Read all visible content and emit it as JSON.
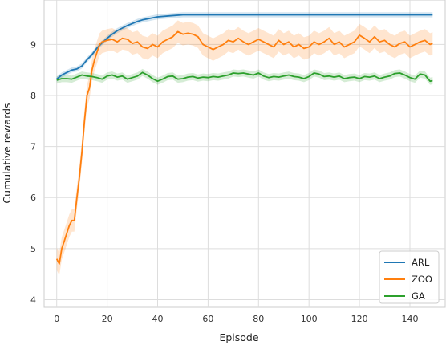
{
  "chart_data": {
    "type": "line",
    "title": "",
    "xlabel": "Episode",
    "ylabel": "Cumulative rewards",
    "xlim": [
      -5,
      154
    ],
    "ylim": [
      3.85,
      9.87
    ],
    "xticks": [
      0,
      20,
      40,
      60,
      80,
      100,
      120,
      140
    ],
    "yticks": [
      4,
      5,
      6,
      7,
      8,
      9
    ],
    "grid": true,
    "legend_position": "lower-right",
    "colors": {
      "ARL": "#1f77b4",
      "ZOO": "#ff7f0e",
      "GA": "#2ca02c"
    },
    "series": [
      {
        "name": "ARL",
        "points": [
          [
            0,
            8.32
          ],
          [
            2,
            8.4
          ],
          [
            4,
            8.45
          ],
          [
            6,
            8.5
          ],
          [
            8,
            8.52
          ],
          [
            10,
            8.58
          ],
          [
            12,
            8.7
          ],
          [
            14,
            8.8
          ],
          [
            16,
            8.93
          ],
          [
            18,
            9.03
          ],
          [
            20,
            9.12
          ],
          [
            22,
            9.2
          ],
          [
            24,
            9.27
          ],
          [
            26,
            9.32
          ],
          [
            28,
            9.37
          ],
          [
            30,
            9.41
          ],
          [
            32,
            9.45
          ],
          [
            34,
            9.48
          ],
          [
            36,
            9.5
          ],
          [
            38,
            9.52
          ],
          [
            40,
            9.54
          ],
          [
            45,
            9.56
          ],
          [
            50,
            9.58
          ],
          [
            60,
            9.58
          ],
          [
            80,
            9.58
          ],
          [
            100,
            9.58
          ],
          [
            120,
            9.58
          ],
          [
            140,
            9.58
          ],
          [
            149,
            9.58
          ]
        ],
        "band": 0.05
      },
      {
        "name": "ZOO",
        "points": [
          [
            0,
            4.8
          ],
          [
            1,
            4.7
          ],
          [
            2,
            5.0
          ],
          [
            3,
            5.15
          ],
          [
            4,
            5.3
          ],
          [
            5,
            5.45
          ],
          [
            6,
            5.55
          ],
          [
            7,
            5.55
          ],
          [
            8,
            6.0
          ],
          [
            9,
            6.4
          ],
          [
            10,
            6.9
          ],
          [
            11,
            7.5
          ],
          [
            12,
            8.0
          ],
          [
            13,
            8.15
          ],
          [
            14,
            8.5
          ],
          [
            15,
            8.7
          ],
          [
            16,
            8.85
          ],
          [
            17,
            9.0
          ],
          [
            18,
            9.05
          ],
          [
            20,
            9.08
          ],
          [
            22,
            9.1
          ],
          [
            24,
            9.05
          ],
          [
            26,
            9.12
          ],
          [
            28,
            9.1
          ],
          [
            30,
            9.02
          ],
          [
            32,
            9.05
          ],
          [
            34,
            8.95
          ],
          [
            36,
            8.92
          ],
          [
            38,
            9.0
          ],
          [
            40,
            8.95
          ],
          [
            42,
            9.05
          ],
          [
            44,
            9.1
          ],
          [
            46,
            9.15
          ],
          [
            48,
            9.25
          ],
          [
            50,
            9.2
          ],
          [
            52,
            9.22
          ],
          [
            54,
            9.2
          ],
          [
            56,
            9.15
          ],
          [
            58,
            9.0
          ],
          [
            60,
            8.95
          ],
          [
            62,
            8.9
          ],
          [
            64,
            8.95
          ],
          [
            66,
            9.0
          ],
          [
            68,
            9.08
          ],
          [
            70,
            9.05
          ],
          [
            72,
            9.12
          ],
          [
            74,
            9.05
          ],
          [
            76,
            9.0
          ],
          [
            78,
            9.05
          ],
          [
            80,
            9.1
          ],
          [
            82,
            9.05
          ],
          [
            84,
            9.0
          ],
          [
            86,
            8.95
          ],
          [
            88,
            9.08
          ],
          [
            90,
            9.0
          ],
          [
            92,
            9.05
          ],
          [
            94,
            8.95
          ],
          [
            96,
            9.0
          ],
          [
            98,
            8.92
          ],
          [
            100,
            8.95
          ],
          [
            102,
            9.05
          ],
          [
            104,
            9.0
          ],
          [
            106,
            9.05
          ],
          [
            108,
            9.12
          ],
          [
            110,
            9.0
          ],
          [
            112,
            9.05
          ],
          [
            114,
            8.95
          ],
          [
            116,
            9.0
          ],
          [
            118,
            9.05
          ],
          [
            120,
            9.18
          ],
          [
            122,
            9.12
          ],
          [
            124,
            9.05
          ],
          [
            126,
            9.15
          ],
          [
            128,
            9.05
          ],
          [
            130,
            9.08
          ],
          [
            132,
            9.0
          ],
          [
            134,
            8.95
          ],
          [
            136,
            9.02
          ],
          [
            138,
            9.05
          ],
          [
            140,
            8.95
          ],
          [
            142,
            9.0
          ],
          [
            144,
            9.05
          ],
          [
            146,
            9.08
          ],
          [
            148,
            9.0
          ],
          [
            149,
            9.02
          ]
        ],
        "band": 0.22
      },
      {
        "name": "GA",
        "points": [
          [
            0,
            8.3
          ],
          [
            2,
            8.33
          ],
          [
            4,
            8.33
          ],
          [
            6,
            8.32
          ],
          [
            8,
            8.36
          ],
          [
            10,
            8.4
          ],
          [
            12,
            8.38
          ],
          [
            14,
            8.37
          ],
          [
            16,
            8.35
          ],
          [
            18,
            8.32
          ],
          [
            20,
            8.38
          ],
          [
            22,
            8.4
          ],
          [
            24,
            8.36
          ],
          [
            26,
            8.38
          ],
          [
            28,
            8.32
          ],
          [
            30,
            8.35
          ],
          [
            32,
            8.38
          ],
          [
            34,
            8.45
          ],
          [
            36,
            8.4
          ],
          [
            38,
            8.33
          ],
          [
            40,
            8.28
          ],
          [
            42,
            8.32
          ],
          [
            44,
            8.37
          ],
          [
            46,
            8.38
          ],
          [
            48,
            8.32
          ],
          [
            50,
            8.33
          ],
          [
            52,
            8.36
          ],
          [
            54,
            8.37
          ],
          [
            56,
            8.34
          ],
          [
            58,
            8.36
          ],
          [
            60,
            8.35
          ],
          [
            62,
            8.37
          ],
          [
            64,
            8.36
          ],
          [
            66,
            8.38
          ],
          [
            68,
            8.4
          ],
          [
            70,
            8.44
          ],
          [
            72,
            8.43
          ],
          [
            74,
            8.44
          ],
          [
            76,
            8.42
          ],
          [
            78,
            8.4
          ],
          [
            80,
            8.44
          ],
          [
            82,
            8.38
          ],
          [
            84,
            8.35
          ],
          [
            86,
            8.37
          ],
          [
            88,
            8.36
          ],
          [
            90,
            8.38
          ],
          [
            92,
            8.4
          ],
          [
            94,
            8.37
          ],
          [
            96,
            8.36
          ],
          [
            98,
            8.33
          ],
          [
            100,
            8.37
          ],
          [
            102,
            8.44
          ],
          [
            104,
            8.42
          ],
          [
            106,
            8.37
          ],
          [
            108,
            8.38
          ],
          [
            110,
            8.36
          ],
          [
            112,
            8.38
          ],
          [
            114,
            8.33
          ],
          [
            116,
            8.35
          ],
          [
            118,
            8.36
          ],
          [
            120,
            8.33
          ],
          [
            122,
            8.37
          ],
          [
            124,
            8.36
          ],
          [
            126,
            8.38
          ],
          [
            128,
            8.33
          ],
          [
            130,
            8.36
          ],
          [
            132,
            8.38
          ],
          [
            134,
            8.43
          ],
          [
            136,
            8.44
          ],
          [
            138,
            8.4
          ],
          [
            140,
            8.35
          ],
          [
            142,
            8.32
          ],
          [
            144,
            8.42
          ],
          [
            146,
            8.4
          ],
          [
            148,
            8.28
          ],
          [
            149,
            8.29
          ]
        ],
        "band": 0.07
      }
    ]
  }
}
